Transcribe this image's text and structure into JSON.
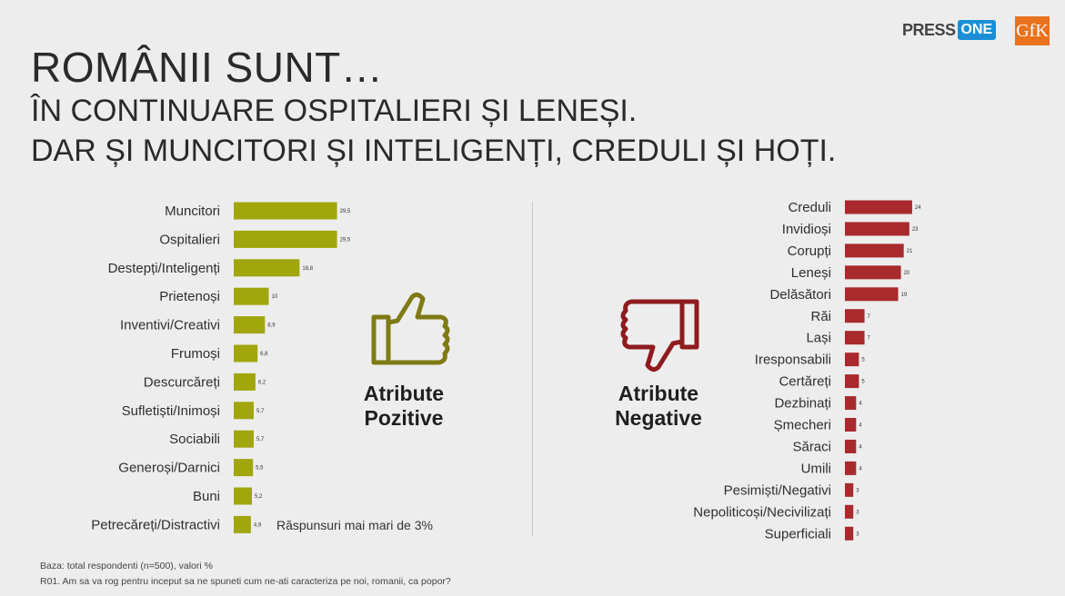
{
  "title": {
    "line1": "ROMÂNII SUNT…",
    "line2": "ÎN CONTINUARE OSPITALIERI ȘI LENEȘI.",
    "line3": "DAR ȘI MUNCITORI ȘI INTELIGENȚI, CREDULI ȘI HOȚI."
  },
  "logos": {
    "press": "PRESS",
    "one": "ONE",
    "gfk": "GfK"
  },
  "badges": {
    "positive": {
      "line1": "Atribute",
      "line2": "Pozitive",
      "color": "#7f7a14",
      "icon": "thumbs-up-icon"
    },
    "negative": {
      "line1": "Atribute",
      "line2": "Negative",
      "color": "#8e1b1e",
      "icon": "thumbs-down-icon"
    }
  },
  "note": "Răspunsuri mai mari de 3%",
  "footer": {
    "line1": "Baza: total respondenti (n=500), valori %",
    "line2": "R01. Am sa va rog pentru inceput sa ne spuneti cum ne-ati caracteriza pe noi, romanii, ca popor?"
  },
  "chart_data": [
    {
      "type": "bar",
      "orientation": "horizontal",
      "color": "#a0a60b",
      "categories": [
        "Muncitori",
        "Ospitalieri",
        "Destepți/Inteligenți",
        "Prietenoși",
        "Inventivi/Creativi",
        "Frumoși",
        "Descurcăreți",
        "Sufletiști/Inimoși",
        "Sociabili",
        "Generoși/Darnici",
        "Buni",
        "Petrecăreți/Distractivi"
      ],
      "values": [
        29.5,
        29.5,
        18.8,
        10,
        8.9,
        6.8,
        6.2,
        5.7,
        5.7,
        5.5,
        5.2,
        4.9
      ],
      "labels": [
        "29,5",
        "29,5",
        "18,8",
        "10",
        "8,9",
        "6,8",
        "6,2",
        "5,7",
        "5,7",
        "5,5",
        "5,2",
        "4,9"
      ]
    },
    {
      "type": "bar",
      "orientation": "horizontal",
      "color": "#a82a2c",
      "categories": [
        "Creduli",
        "Invidioși",
        "Corupți",
        "Leneși",
        "Delăsători",
        "Răi",
        "Lași",
        "Iresponsabili",
        "Certăreți",
        "Dezbinați",
        "Șmecheri",
        "Săraci",
        "Umili",
        "Pesimiști/Negativi",
        "Nepoliticoși/Necivilizați",
        "Superficiali"
      ],
      "values": [
        24,
        23,
        21,
        20,
        19,
        7,
        7,
        5,
        5,
        4,
        4,
        4,
        4,
        3,
        3,
        3
      ],
      "labels": [
        "24",
        "23",
        "21",
        "20",
        "19",
        "7",
        "7",
        "5",
        "5",
        "4",
        "4",
        "4",
        "4",
        "3",
        "3",
        "3"
      ]
    }
  ]
}
